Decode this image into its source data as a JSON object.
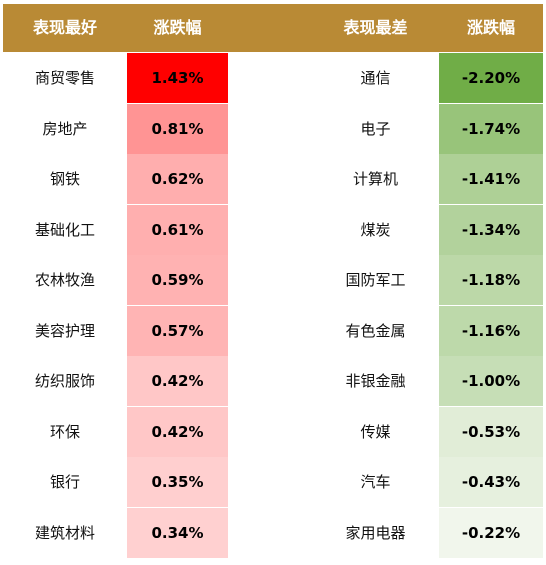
{
  "header": {
    "best_label": "表现最好",
    "best_change": "涨跌幅",
    "worst_label": "表现最差",
    "worst_change": "涨跌幅"
  },
  "chart_data": {
    "type": "table",
    "unit": "%",
    "best": [
      {
        "name": "商贸零售",
        "value": 1.43,
        "label": "1.43%"
      },
      {
        "name": "房地产",
        "value": 0.81,
        "label": "0.81%"
      },
      {
        "name": "钢铁",
        "value": 0.62,
        "label": "0.62%"
      },
      {
        "name": "基础化工",
        "value": 0.61,
        "label": "0.61%"
      },
      {
        "name": "农林牧渔",
        "value": 0.59,
        "label": "0.59%"
      },
      {
        "name": "美容护理",
        "value": 0.57,
        "label": "0.57%"
      },
      {
        "name": "纺织服饰",
        "value": 0.42,
        "label": "0.42%"
      },
      {
        "name": "环保",
        "value": 0.42,
        "label": "0.42%"
      },
      {
        "name": "银行",
        "value": 0.35,
        "label": "0.35%"
      },
      {
        "name": "建筑材料",
        "value": 0.34,
        "label": "0.34%"
      }
    ],
    "worst": [
      {
        "name": "通信",
        "value": -2.2,
        "label": "-2.20%"
      },
      {
        "name": "电子",
        "value": -1.74,
        "label": "-1.74%"
      },
      {
        "name": "计算机",
        "value": -1.41,
        "label": "-1.41%"
      },
      {
        "name": "煤炭",
        "value": -1.34,
        "label": "-1.34%"
      },
      {
        "name": "国防军工",
        "value": -1.18,
        "label": "-1.18%"
      },
      {
        "name": "有色金属",
        "value": -1.16,
        "label": "-1.16%"
      },
      {
        "name": "非银金融",
        "value": -1.0,
        "label": "-1.00%"
      },
      {
        "name": "传媒",
        "value": -0.53,
        "label": "-0.53%"
      },
      {
        "name": "汽车",
        "value": -0.43,
        "label": "-0.43%"
      },
      {
        "name": "家用电器",
        "value": -0.22,
        "label": "-0.22%"
      }
    ],
    "colors": {
      "header": "#b98a35",
      "best_max": "#ff0000",
      "best_min": "#ffd0d0",
      "worst_max": "#70ad47",
      "worst_min": "#f1f6ec"
    }
  }
}
